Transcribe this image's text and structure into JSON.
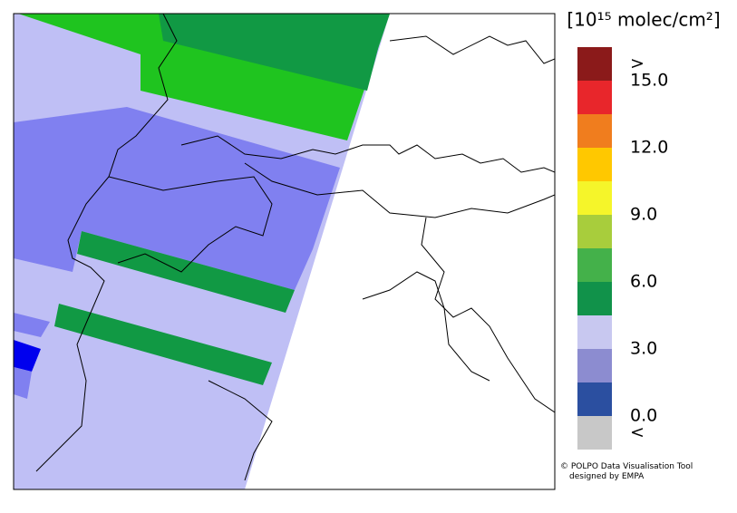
{
  "legend": {
    "title": "[10¹⁵ molec/cm²]",
    "colors": [
      "#8b1a1a",
      "#e8262b",
      "#f07d1e",
      "#ffc800",
      "#f5f52a",
      "#a8cd3c",
      "#44b14a",
      "#11924a",
      "#c8c8f0",
      "#8c8cd0",
      "#2b4fa0",
      "#c8c8c8"
    ],
    "labels": [
      ">",
      "15.0",
      "12.0",
      "9.0",
      "6.0",
      "3.0",
      "0.0",
      "<"
    ]
  },
  "credit": [
    "© POLPO Data Visualisation Tool",
    "designed by EMPA"
  ]
}
